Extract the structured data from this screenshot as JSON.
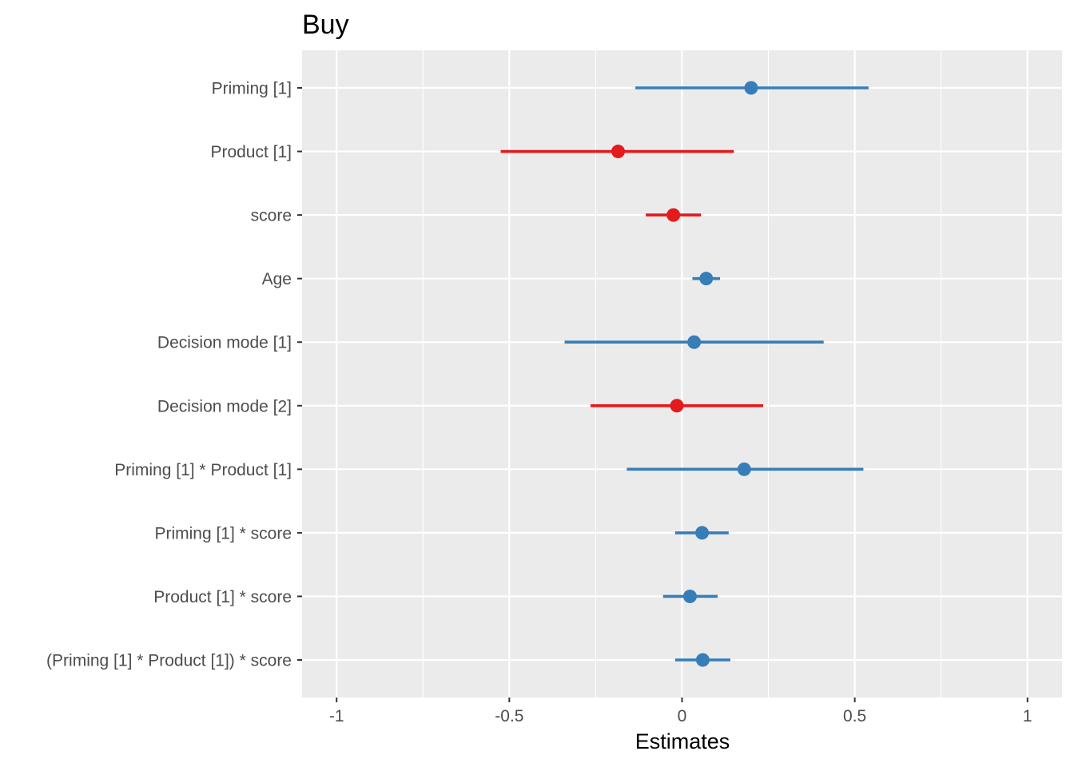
{
  "chart_data": {
    "type": "forest",
    "title": "Buy",
    "xlabel": "Estimates",
    "xlim": [
      -1.1,
      1.1
    ],
    "x_ticks": [
      {
        "value": -1,
        "label": "-1"
      },
      {
        "value": -0.5,
        "label": "-0.5"
      },
      {
        "value": 0,
        "label": "0"
      },
      {
        "value": 0.5,
        "label": "0.5"
      },
      {
        "value": 1,
        "label": "1"
      }
    ],
    "grid": true,
    "colors": {
      "positive": "#377eb8",
      "negative": "#e41a1c",
      "panel": "#ebebeb",
      "grid": "#ffffff"
    },
    "terms": [
      {
        "label": "Priming [1]",
        "estimate": 0.2,
        "lower": -0.135,
        "upper": 0.54
      },
      {
        "label": "Product [1]",
        "estimate": -0.185,
        "lower": -0.525,
        "upper": 0.15
      },
      {
        "label": "score",
        "estimate": -0.025,
        "lower": -0.105,
        "upper": 0.055
      },
      {
        "label": "Age",
        "estimate": 0.07,
        "lower": 0.03,
        "upper": 0.11
      },
      {
        "label": "Decision mode [1]",
        "estimate": 0.035,
        "lower": -0.34,
        "upper": 0.41
      },
      {
        "label": "Decision mode [2]",
        "estimate": -0.015,
        "lower": -0.265,
        "upper": 0.235
      },
      {
        "label": "Priming [1] * Product [1]",
        "estimate": 0.18,
        "lower": -0.16,
        "upper": 0.525
      },
      {
        "label": "Priming [1] * score",
        "estimate": 0.058,
        "lower": -0.02,
        "upper": 0.135
      },
      {
        "label": "Product [1] * score",
        "estimate": 0.023,
        "lower": -0.055,
        "upper": 0.103
      },
      {
        "label": "(Priming [1] * Product [1]) * score",
        "estimate": 0.06,
        "lower": -0.02,
        "upper": 0.14
      }
    ]
  }
}
